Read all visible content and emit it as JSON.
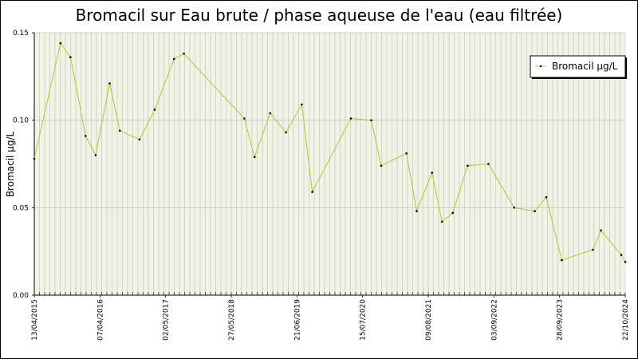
{
  "chart_data": {
    "type": "line",
    "title": "Bromacil sur Eau brute / phase aqueuse de l'eau (eau filtrée)",
    "xlabel": "",
    "ylabel": "Bromacil µg/L",
    "ylim": [
      0,
      0.15
    ],
    "yticks": [
      "0.00",
      "0.05",
      "0.10",
      "0.15"
    ],
    "xlim": [
      "2015-04-13",
      "2024-10-22"
    ],
    "xticks": [
      "13/04/2015",
      "07/04/2016",
      "02/05/2017",
      "27/05/2018",
      "21/06/2019",
      "15/07/2020",
      "09/08/2021",
      "03/09/2022",
      "28/09/2023",
      "22/10/2024"
    ],
    "grid": true,
    "legend_position": "top-right",
    "series": [
      {
        "name": "Bromacil µg/L",
        "color": "#a6cc33",
        "points": [
          {
            "x": "2015-04-13",
            "y": 0.078
          },
          {
            "x": "2015-09-14",
            "y": 0.144
          },
          {
            "x": "2015-11-12",
            "y": 0.136
          },
          {
            "x": "2016-02-09",
            "y": 0.091
          },
          {
            "x": "2016-04-08",
            "y": 0.08
          },
          {
            "x": "2016-06-30",
            "y": 0.121
          },
          {
            "x": "2016-08-29",
            "y": 0.094
          },
          {
            "x": "2016-12-23",
            "y": 0.089
          },
          {
            "x": "2017-03-22",
            "y": 0.106
          },
          {
            "x": "2017-07-14",
            "y": 0.135
          },
          {
            "x": "2017-09-10",
            "y": 0.138
          },
          {
            "x": "2018-09-01",
            "y": 0.101
          },
          {
            "x": "2018-10-31",
            "y": 0.079
          },
          {
            "x": "2019-01-31",
            "y": 0.104
          },
          {
            "x": "2019-05-04",
            "y": 0.093
          },
          {
            "x": "2019-08-05",
            "y": 0.109
          },
          {
            "x": "2019-10-06",
            "y": 0.059
          },
          {
            "x": "2020-05-20",
            "y": 0.101
          },
          {
            "x": "2020-09-17",
            "y": 0.1
          },
          {
            "x": "2020-11-15",
            "y": 0.074
          },
          {
            "x": "2021-04-13",
            "y": 0.081
          },
          {
            "x": "2021-06-12",
            "y": 0.048
          },
          {
            "x": "2021-09-10",
            "y": 0.07
          },
          {
            "x": "2021-11-08",
            "y": 0.042
          },
          {
            "x": "2022-01-10",
            "y": 0.047
          },
          {
            "x": "2022-04-08",
            "y": 0.074
          },
          {
            "x": "2022-08-08",
            "y": 0.075
          },
          {
            "x": "2023-01-07",
            "y": 0.05
          },
          {
            "x": "2023-05-08",
            "y": 0.048
          },
          {
            "x": "2023-07-15",
            "y": 0.056
          },
          {
            "x": "2023-10-14",
            "y": 0.02
          },
          {
            "x": "2024-04-15",
            "y": 0.026
          },
          {
            "x": "2024-06-01",
            "y": 0.037
          },
          {
            "x": "2024-09-29",
            "y": 0.023
          },
          {
            "x": "2024-10-22",
            "y": 0.019
          }
        ]
      }
    ]
  }
}
